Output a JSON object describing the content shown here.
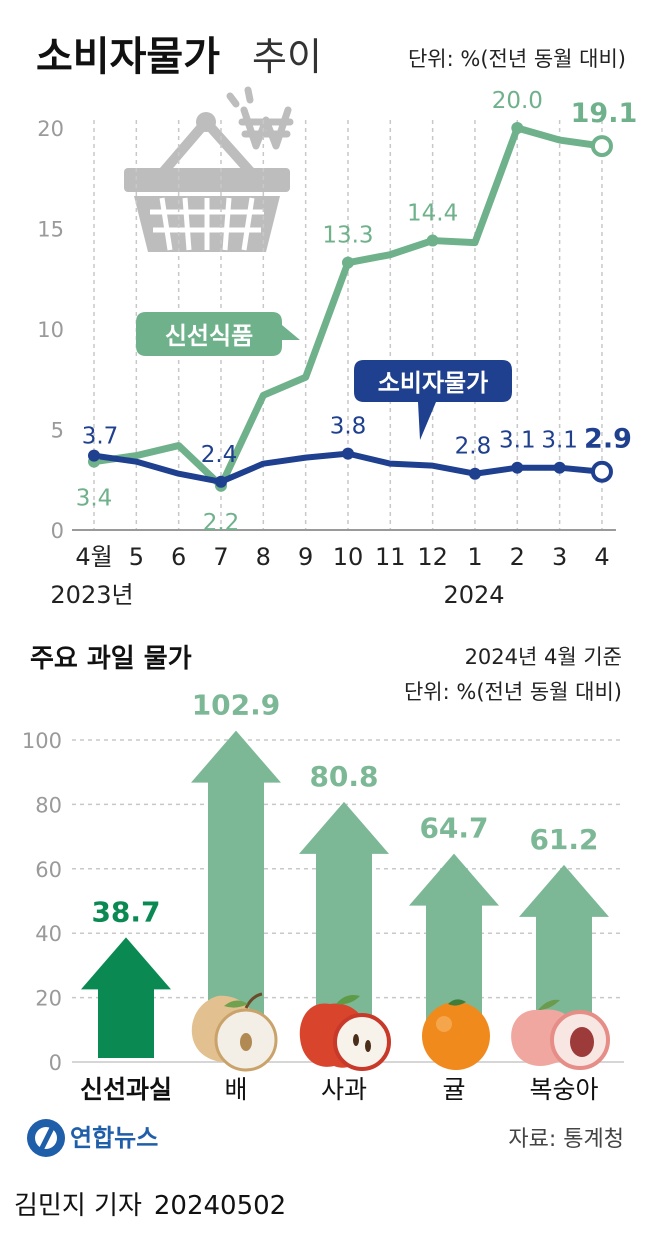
{
  "header": {
    "title_bold": "소비자물가",
    "title_light": "추이",
    "unit": "단위: %(전년 동월 대비)"
  },
  "colors": {
    "fresh_food": "#6fb18b",
    "cpi": "#1f3f8f",
    "bar_dark": "#0a8a52",
    "bar_light": "#7cb896",
    "axis": "#9a9a9a",
    "grid": "#c8c8c8",
    "icon_gray": "#bdbdbd"
  },
  "icons": {
    "basket": "shopping-basket-icon",
    "won": "won-sign-icon",
    "yonhap_logo": "yonhap-logo-icon",
    "pear": "pear-icon",
    "apple": "apple-icon",
    "tangerine": "tangerine-icon",
    "peach": "peach-icon"
  },
  "chart_data": [
    {
      "type": "line",
      "x": [
        "4월",
        "5",
        "6",
        "7",
        "8",
        "9",
        "10",
        "11",
        "12",
        "1",
        "2",
        "3",
        "4"
      ],
      "year_labels": [
        "2023년",
        "2024"
      ],
      "ylim": [
        0,
        20
      ],
      "yticks": [
        0,
        5,
        10,
        15,
        20
      ],
      "grid": true,
      "series": [
        {
          "name": "신선식품",
          "values": [
            3.4,
            3.7,
            4.2,
            2.2,
            6.7,
            7.6,
            13.3,
            13.7,
            14.4,
            14.3,
            20.0,
            19.4,
            19.1
          ],
          "labels": {
            "0": "3.4",
            "3": "2.2",
            "6": "13.3",
            "8": "14.4",
            "10": "20.0",
            "12": "19.1"
          }
        },
        {
          "name": "소비자물가",
          "values": [
            3.7,
            3.4,
            2.8,
            2.4,
            3.3,
            3.6,
            3.8,
            3.3,
            3.2,
            2.8,
            3.1,
            3.1,
            2.9
          ],
          "labels": {
            "0": "3.7",
            "3": "2.4",
            "6": "3.8",
            "9": "2.8",
            "10": "3.1",
            "11": "3.1",
            "12": "2.9"
          }
        }
      ]
    },
    {
      "type": "bar",
      "title": "주요 과일 물가",
      "basis": "2024년 4월 기준",
      "unit": "단위: %(전년 동월 대비)",
      "categories": [
        "신선과실",
        "배",
        "사과",
        "귤",
        "복숭아"
      ],
      "values": [
        38.7,
        102.9,
        80.8,
        64.7,
        61.2
      ],
      "value_labels": [
        "38.7",
        "102.9",
        "80.8",
        "64.7",
        "61.2"
      ],
      "ylim": [
        0,
        100
      ],
      "yticks": [
        0,
        20,
        40,
        60,
        80,
        100
      ],
      "grid": true
    }
  ],
  "footer": {
    "logo_text": "연합뉴스",
    "source": "자료: 통계청",
    "reporter": "김민지 기자",
    "date": "20240502"
  }
}
